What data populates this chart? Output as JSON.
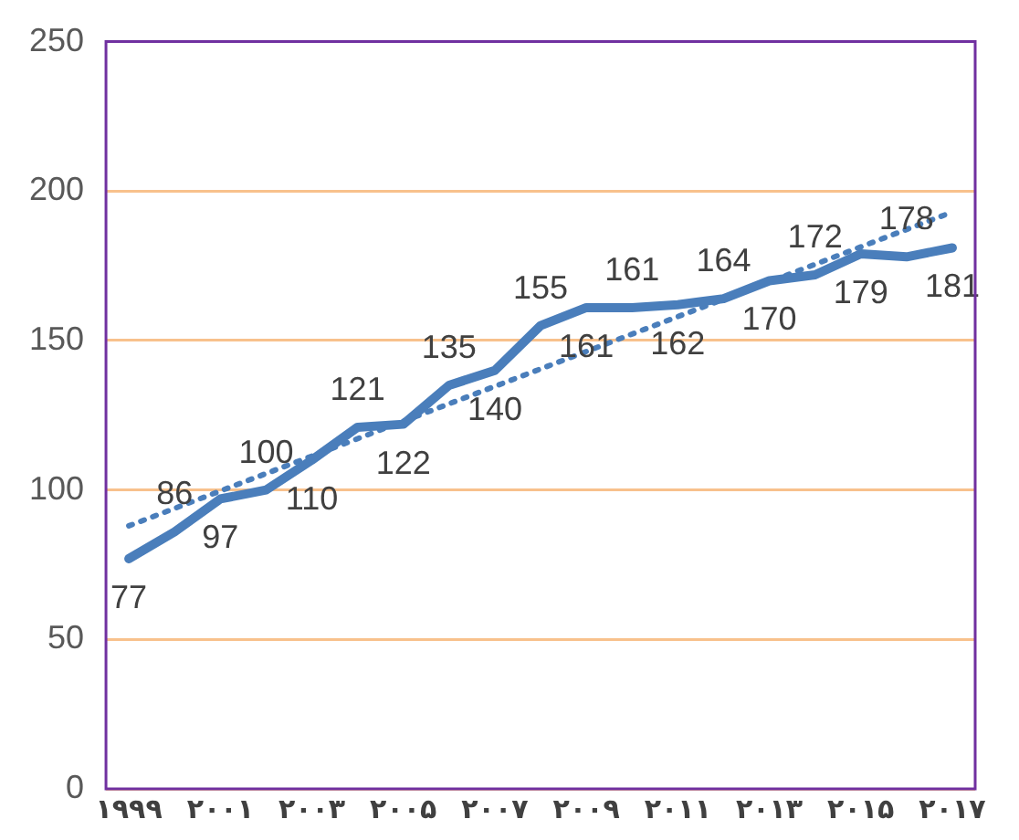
{
  "chart_data": {
    "type": "line",
    "categories": [
      "۱۹۹۹",
      null,
      "۲۰۰۱",
      null,
      "۲۰۰۳",
      null,
      "۲۰۰۵",
      null,
      "۲۰۰۷",
      null,
      "۲۰۰۹",
      null,
      "۲۰۱۱",
      null,
      "۲۰۱۳",
      null,
      "۲۰۱۵",
      null,
      "۲۰۱۷"
    ],
    "series": [
      {
        "color": "#4a7ebb",
        "values": [
          77,
          86,
          97,
          100,
          110,
          121,
          122,
          135,
          140,
          155,
          161,
          161,
          162,
          164,
          170,
          172,
          179,
          178,
          181
        ],
        "line_style": "solid",
        "data_labels": true
      },
      {
        "type": "line",
        "color": "#4a7ebb",
        "values": [
          88,
          null,
          null,
          null,
          null,
          null,
          null,
          null,
          null,
          null,
          null,
          null,
          null,
          null,
          null,
          null,
          null,
          null,
          193
        ],
        "line_style": "dotted"
      }
    ],
    "ylim": [
      0,
      250
    ],
    "yticks": [
      0,
      50,
      100,
      150,
      200,
      250
    ],
    "grid": "y",
    "legend": false,
    "marker": "none"
  }
}
